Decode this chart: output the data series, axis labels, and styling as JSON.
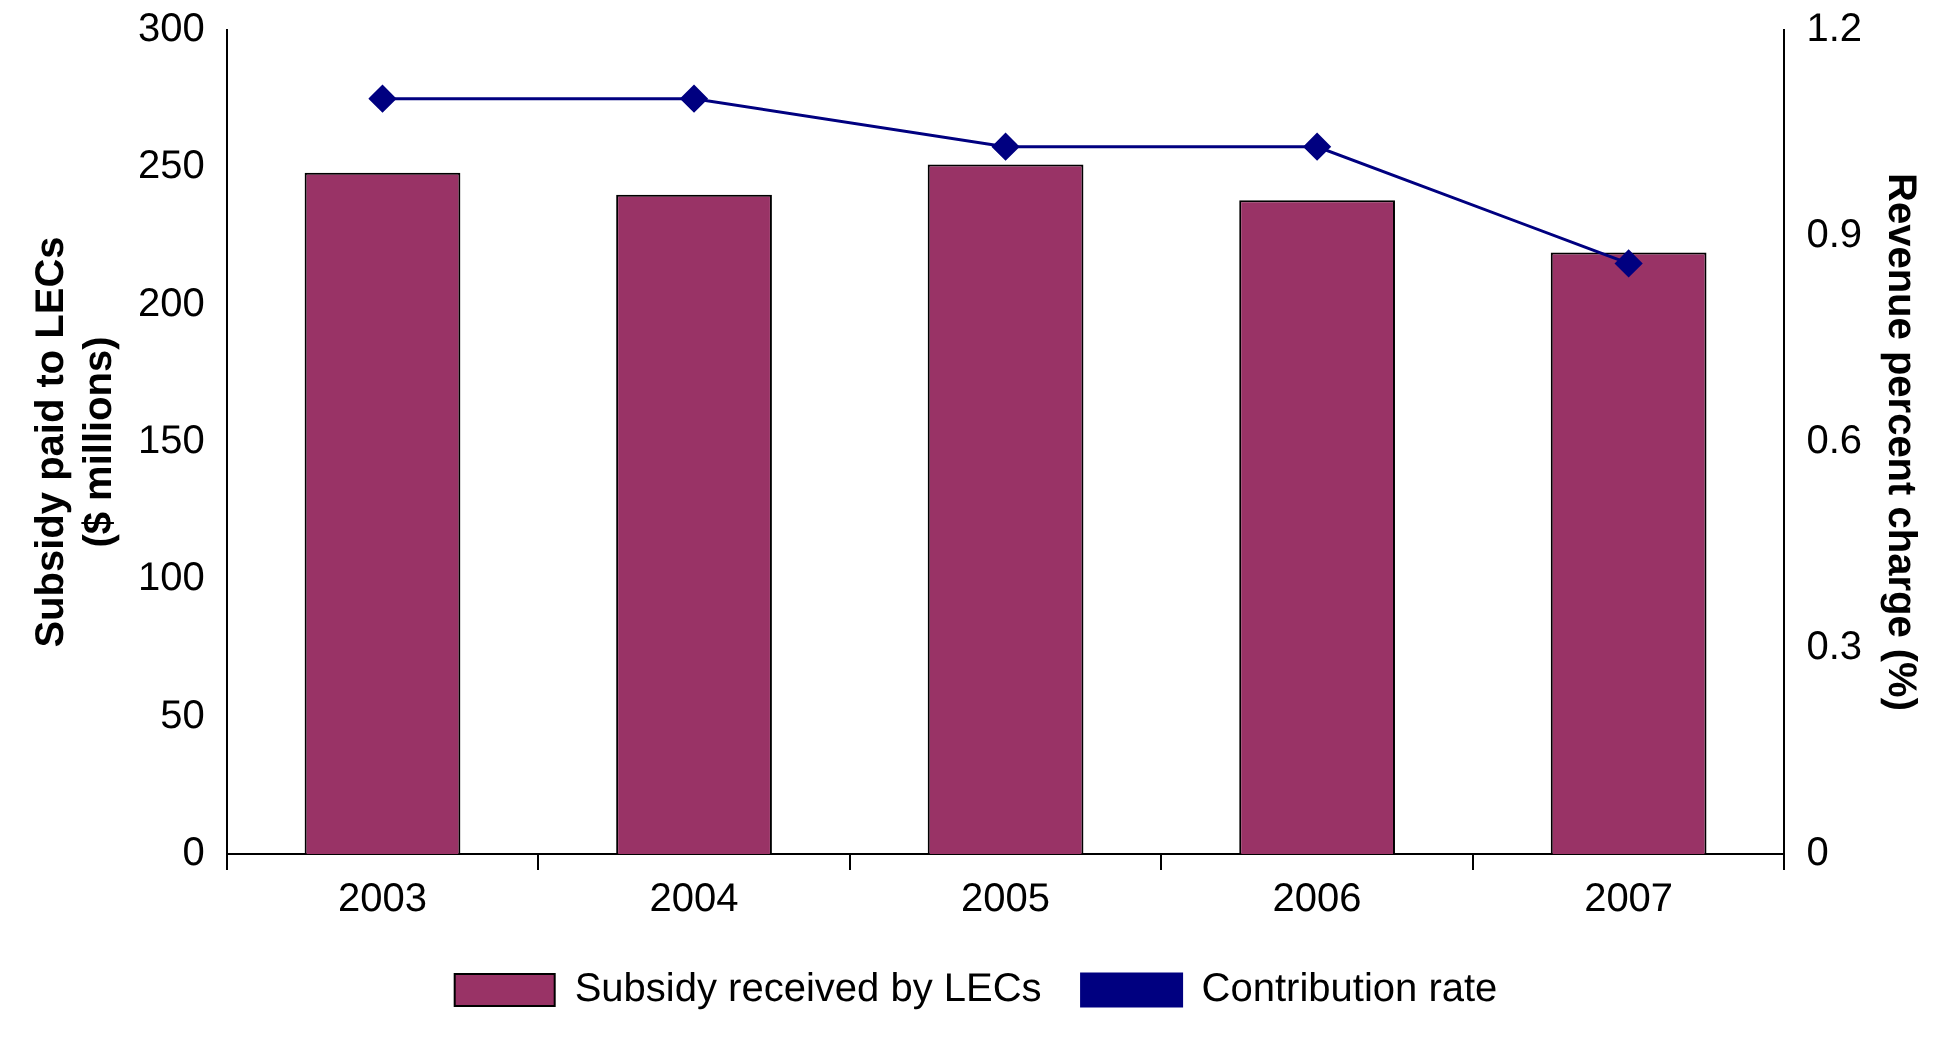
{
  "chart_data": {
    "type": "bar",
    "categories": [
      "2003",
      "2004",
      "2005",
      "2006",
      "2007"
    ],
    "ylabel": "Subsidy paid to LECs\n($ millions)",
    "y2label": "Revenue percent charge (%)",
    "ylim": [
      0,
      300
    ],
    "yticks": [
      0,
      50,
      100,
      150,
      200,
      250,
      300
    ],
    "y2lim": [
      0,
      1.2
    ],
    "y2ticks": [
      {
        "value": 0,
        "label": "0"
      },
      {
        "value": 0.3,
        "label": "0.3"
      },
      {
        "value": 0.6,
        "label": "0.6"
      },
      {
        "value": 0.9,
        "label": "0.9"
      },
      {
        "value": 1.2,
        "label": "1.2"
      }
    ],
    "legend": "bottom",
    "marker": "diamond",
    "series": [
      {
        "name": "Subsidy received by LECs",
        "color": "#993366",
        "values": [
          248,
          240,
          251,
          238,
          219
        ]
      },
      {
        "name": "Contribution rate",
        "type": "line",
        "axis": "y2",
        "color": "#000080",
        "values": [
          1.1,
          1.1,
          1.03,
          1.03,
          0.86
        ]
      }
    ]
  }
}
